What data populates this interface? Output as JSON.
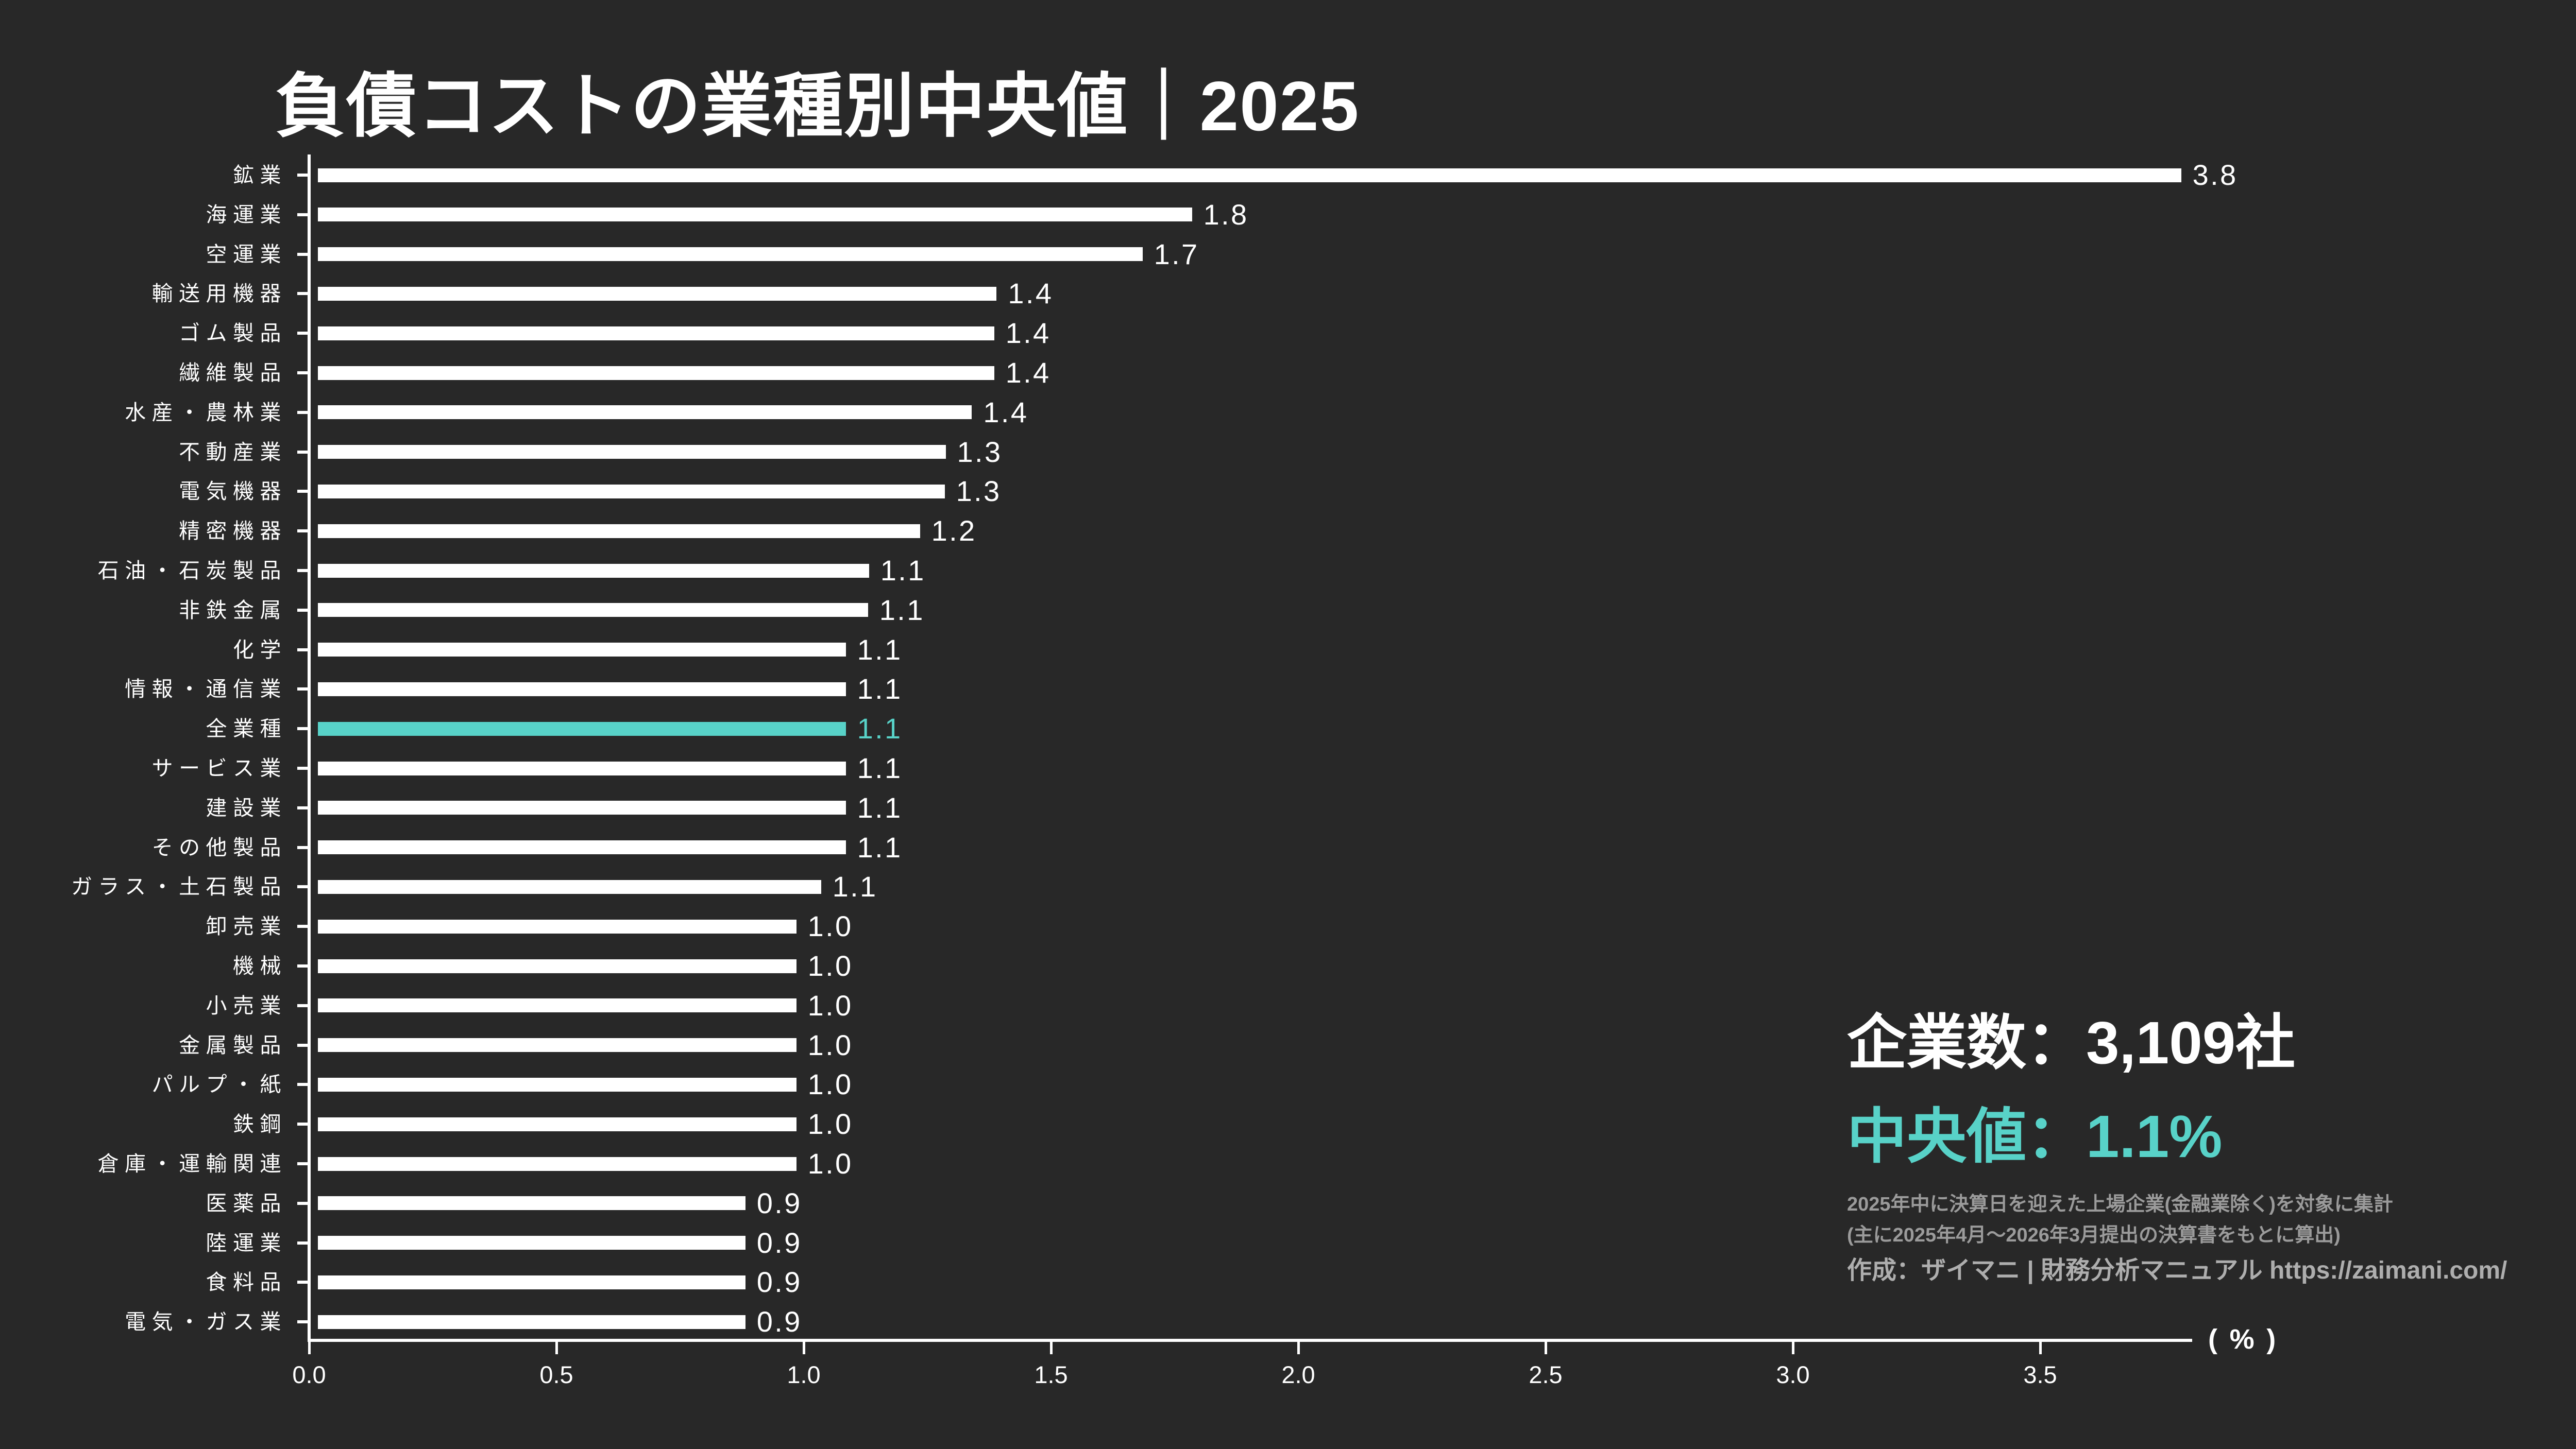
{
  "title": "負債コストの業種別中央値｜2025",
  "chart_data": {
    "type": "bar",
    "orientation": "horizontal",
    "unit": "%",
    "axis_unit_label": "( % )",
    "title": "負債コストの業種別中央値｜2025",
    "xlim": [
      0.0,
      3.8
    ],
    "x_ticks": [
      "0.0",
      "0.5",
      "1.0",
      "1.5",
      "2.0",
      "2.5",
      "3.0",
      "3.5"
    ],
    "legend": null,
    "grid": false,
    "bars": [
      {
        "category": "鉱業",
        "label": "3.8",
        "value": 3.785,
        "highlight": false
      },
      {
        "category": "海運業",
        "label": "1.8",
        "value": 1.785,
        "highlight": false
      },
      {
        "category": "空運業",
        "label": "1.7",
        "value": 1.685,
        "highlight": false
      },
      {
        "category": "輸送用機器",
        "label": "1.4",
        "value": 1.39,
        "highlight": false
      },
      {
        "category": "ゴム製品",
        "label": "1.4",
        "value": 1.385,
        "highlight": false
      },
      {
        "category": "繊維製品",
        "label": "1.4",
        "value": 1.385,
        "highlight": false
      },
      {
        "category": "水産・農林業",
        "label": "1.4",
        "value": 1.34,
        "highlight": false
      },
      {
        "category": "不動産業",
        "label": "1.3",
        "value": 1.287,
        "highlight": false
      },
      {
        "category": "電気機器",
        "label": "1.3",
        "value": 1.285,
        "highlight": false
      },
      {
        "category": "精密機器",
        "label": "1.2",
        "value": 1.235,
        "highlight": false
      },
      {
        "category": "石油・石炭製品",
        "label": "1.1",
        "value": 1.132,
        "highlight": false
      },
      {
        "category": "非鉄金属",
        "label": "1.1",
        "value": 1.13,
        "highlight": false
      },
      {
        "category": "化学",
        "label": "1.1",
        "value": 1.085,
        "highlight": false
      },
      {
        "category": "情報・通信業",
        "label": "1.1",
        "value": 1.085,
        "highlight": false
      },
      {
        "category": "全業種",
        "label": "1.1",
        "value": 1.085,
        "highlight": true
      },
      {
        "category": "サービス業",
        "label": "1.1",
        "value": 1.085,
        "highlight": false
      },
      {
        "category": "建設業",
        "label": "1.1",
        "value": 1.085,
        "highlight": false
      },
      {
        "category": "その他製品",
        "label": "1.1",
        "value": 1.085,
        "highlight": false
      },
      {
        "category": "ガラス・土石製品",
        "label": "1.1",
        "value": 1.035,
        "highlight": false
      },
      {
        "category": "卸売業",
        "label": "1.0",
        "value": 0.985,
        "highlight": false
      },
      {
        "category": "機械",
        "label": "1.0",
        "value": 0.985,
        "highlight": false
      },
      {
        "category": "小売業",
        "label": "1.0",
        "value": 0.985,
        "highlight": false
      },
      {
        "category": "金属製品",
        "label": "1.0",
        "value": 0.985,
        "highlight": false
      },
      {
        "category": "パルプ・紙",
        "label": "1.0",
        "value": 0.985,
        "highlight": false
      },
      {
        "category": "鉄鋼",
        "label": "1.0",
        "value": 0.985,
        "highlight": false
      },
      {
        "category": "倉庫・運輸関連",
        "label": "1.0",
        "value": 0.985,
        "highlight": false
      },
      {
        "category": "医薬品",
        "label": "0.9",
        "value": 0.882,
        "highlight": false
      },
      {
        "category": "陸運業",
        "label": "0.9",
        "value": 0.882,
        "highlight": false
      },
      {
        "category": "食料品",
        "label": "0.9",
        "value": 0.882,
        "highlight": false
      },
      {
        "category": "電気・ガス業",
        "label": "0.9",
        "value": 0.882,
        "highlight": false
      }
    ]
  },
  "stats": {
    "companies": "企業数：3,109社",
    "median": "中央値：1.1%",
    "notes": [
      "2025年中に決算日を迎えた上場企業(金融業除く)を対象に集計",
      "(主に2025年4月～2026年3月提出の決算書をもとに算出)"
    ],
    "credit": "作成：ザイマニ | 財務分析マニュアル https://zaimani.com/"
  },
  "colors": {
    "background": "#282828",
    "bar": "#ffffff",
    "highlight": "#58d2c8",
    "text": "#ffffff",
    "note": "#9b9b9b",
    "credit": "#aeaeae"
  }
}
